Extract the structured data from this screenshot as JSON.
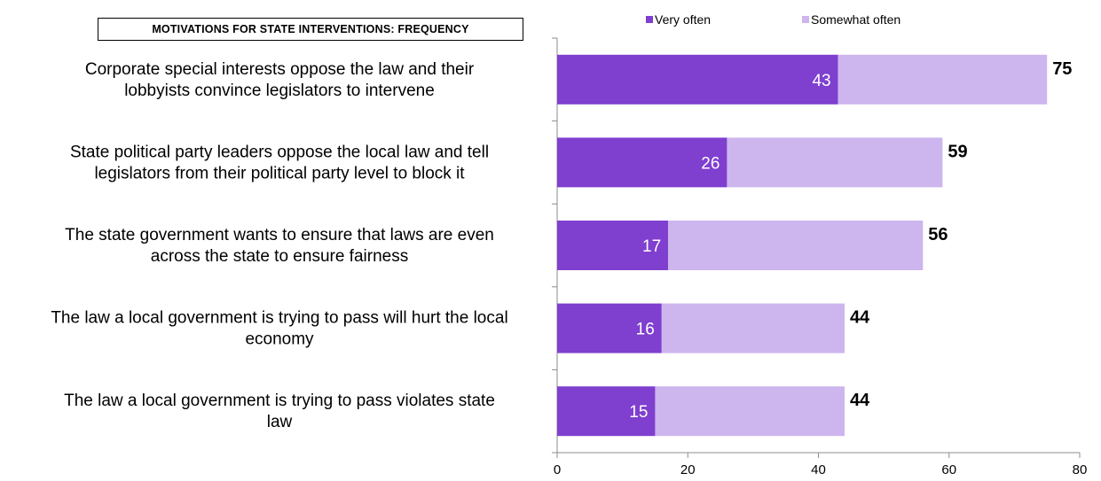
{
  "chart_data": {
    "type": "bar",
    "orientation": "horizontal",
    "stacked": true,
    "title": "MOTIVATIONS FOR STATE INTERVENTIONS:  FREQUENCY",
    "categories": [
      [
        "Corporate special interests oppose the law and their",
        "lobbyists convince legislators to intervene"
      ],
      [
        "State political party leaders oppose the local law and tell",
        "legislators from their political party level to block it"
      ],
      [
        "The state government wants to ensure that laws are even",
        "across the state to ensure fairness"
      ],
      [
        "The law a local government is trying to pass will hurt the local",
        "economy"
      ],
      [
        "The law a local government is trying to pass violates state",
        "law"
      ]
    ],
    "series": [
      {
        "name": "Very often",
        "color": "#7f3fcf",
        "values": [
          43,
          26,
          17,
          16,
          15
        ]
      },
      {
        "name": "Somewhat often",
        "color": "#cdb5ee",
        "values": [
          32,
          33,
          39,
          28,
          29
        ]
      }
    ],
    "totals": [
      75,
      59,
      56,
      44,
      44
    ],
    "xlim": [
      0,
      80
    ],
    "xticks": [
      0,
      20,
      40,
      60,
      80
    ],
    "legend_position": "top",
    "grid": false
  }
}
